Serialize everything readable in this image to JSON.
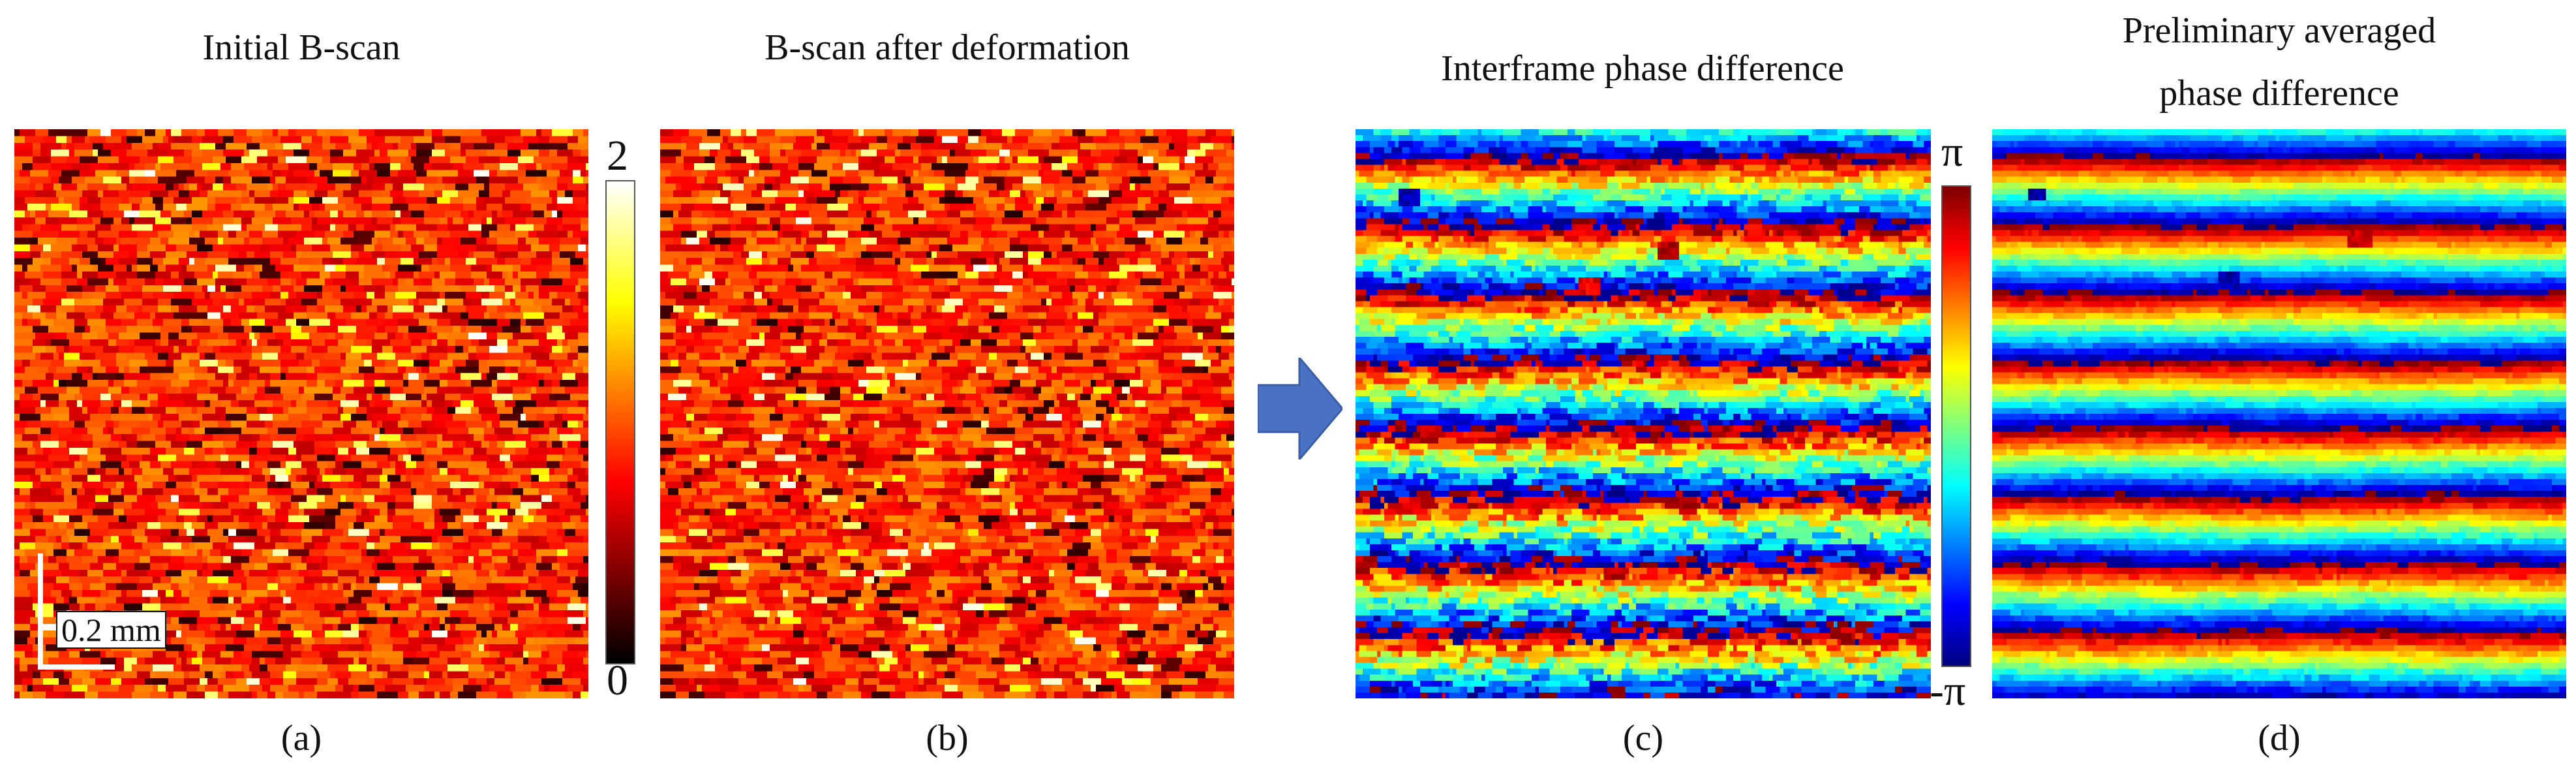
{
  "panels": {
    "a": {
      "title": "Initial B-scan",
      "caption": "(a)"
    },
    "b": {
      "title": "B-scan after deformation",
      "caption": "(b)"
    },
    "c": {
      "title": "Interframe phase difference",
      "caption": "(c)"
    },
    "d": {
      "title_line1": "Preliminary averaged",
      "title_line2": "phase difference",
      "caption": "(d)"
    }
  },
  "colorbar_hot": {
    "max_label": "2",
    "min_label": "0",
    "colormap": "hot"
  },
  "colorbar_jet": {
    "max_label": "π",
    "min_label": "-π",
    "colormap": "jet"
  },
  "scale_bar": {
    "label": "0.2 mm"
  },
  "arrow": {
    "icon": "right-arrow-icon",
    "color": "#4a72c4"
  }
}
